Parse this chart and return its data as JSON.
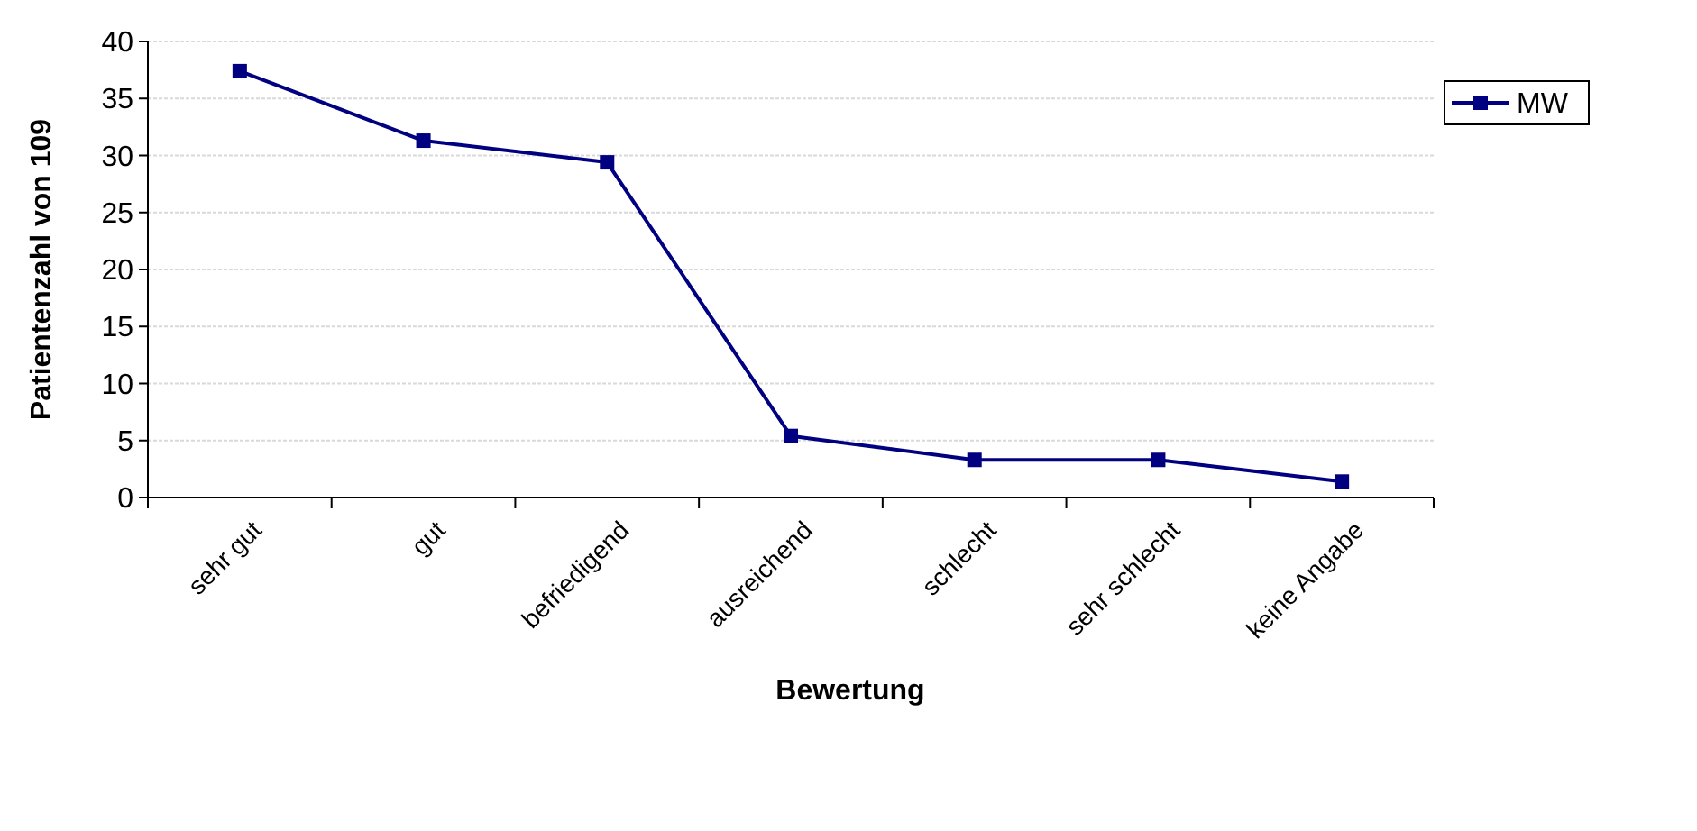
{
  "chart_data": {
    "type": "line",
    "xlabel": "Bewertung",
    "ylabel": "Patientenzahl von 109",
    "categories": [
      "sehr gut",
      "gut",
      "befriedigend",
      "ausreichend",
      "schlecht",
      "sehr schlecht",
      "keine Angabe"
    ],
    "series": [
      {
        "name": "MW",
        "color": "#000080",
        "values": [
          37.4,
          31.3,
          29.4,
          5.4,
          3.3,
          3.3,
          1.4
        ]
      }
    ],
    "ylim": [
      0,
      40
    ],
    "yticks": [
      0,
      5,
      10,
      15,
      20,
      25,
      30,
      35,
      40
    ],
    "grid": "y",
    "legend": "top right",
    "marker": "square",
    "line_style": "solid"
  }
}
